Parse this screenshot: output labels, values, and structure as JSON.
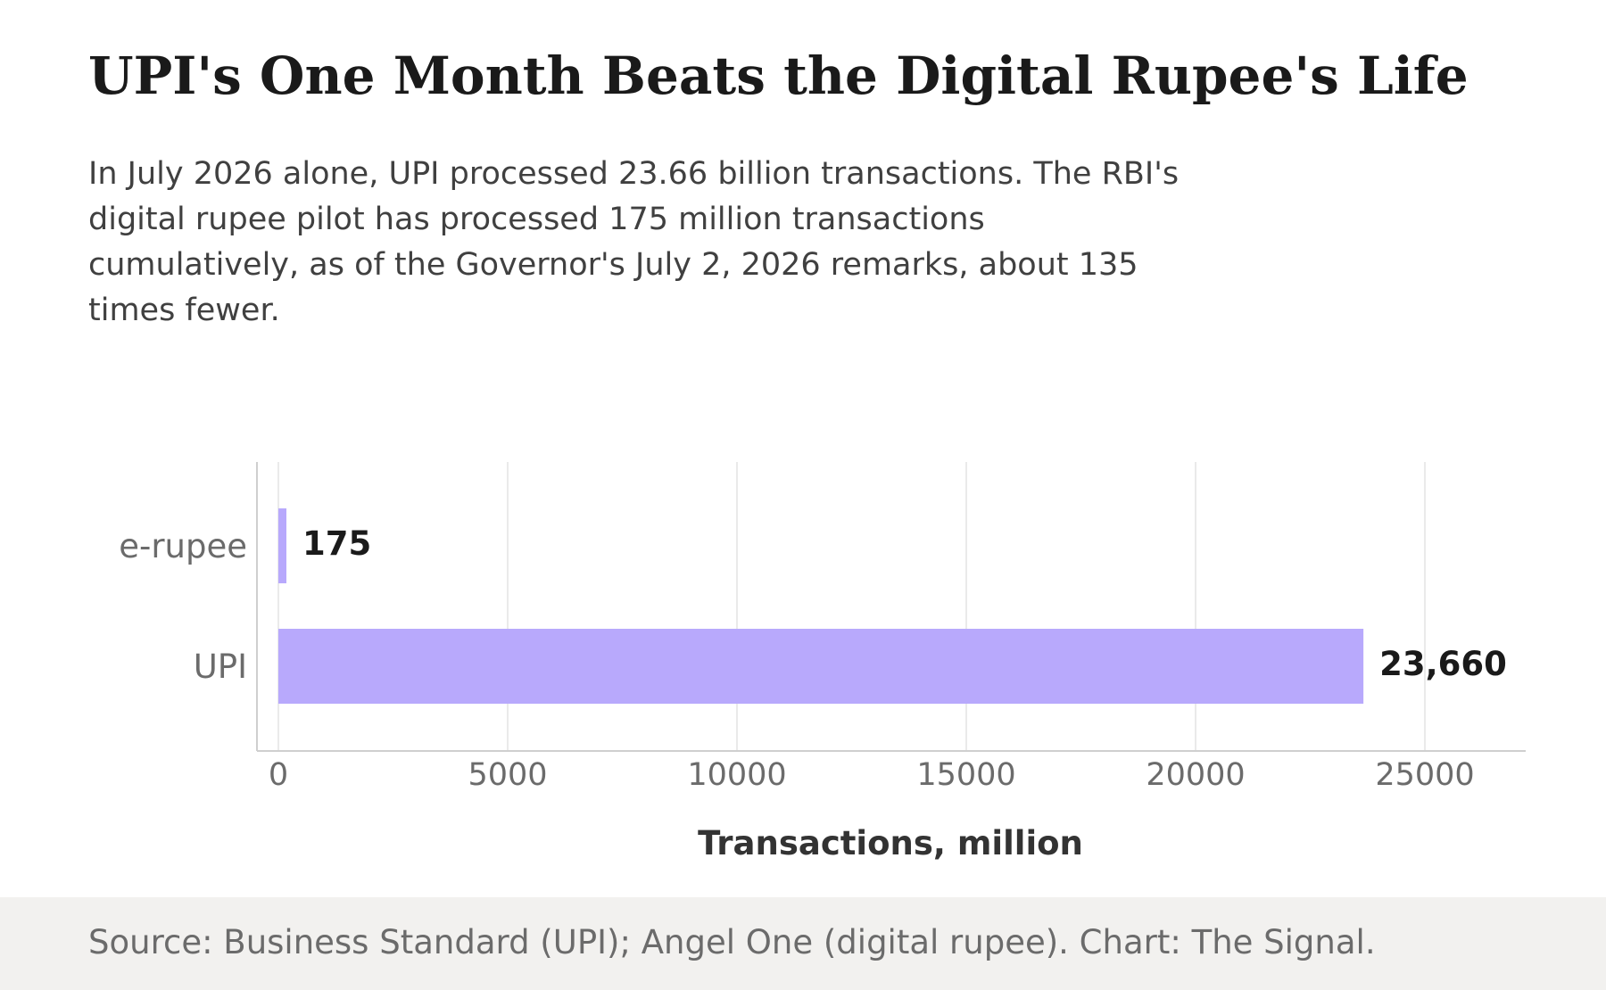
{
  "title": "UPI's One Month Beats the Digital Rupee's Life",
  "subtitle": "In July 2026 alone, UPI processed 23.66 billion transactions. The RBI's digital rupee pilot has processed 175 million transactions cumulatively, as of the Governor's July 2, 2026 remarks, about 135 times fewer.",
  "footer": {
    "source": "Source: Business Standard (UPI); Angel One (digital rupee). Chart: The Signal."
  },
  "colors": {
    "bar": "#b8a9fc",
    "grid": "#e4e4e4",
    "axis": "#cfcfcf",
    "tick_text": "#6b6b6b",
    "label_text": "#1a1a1a",
    "xlabel_text": "#333333"
  },
  "chart_data": {
    "type": "bar",
    "orientation": "horizontal",
    "categories": [
      "e-rupee",
      "UPI"
    ],
    "values": [
      175,
      23660
    ],
    "value_labels": [
      "175",
      "23,660"
    ],
    "xlabel": "Transactions, million",
    "ylabel": "",
    "xlim": [
      0,
      27000
    ],
    "xticks": [
      0,
      5000,
      10000,
      15000,
      20000,
      25000
    ],
    "xtick_labels": [
      "0",
      "5000",
      "10000",
      "15000",
      "20000",
      "25000"
    ],
    "grid": true,
    "legend": "none"
  }
}
